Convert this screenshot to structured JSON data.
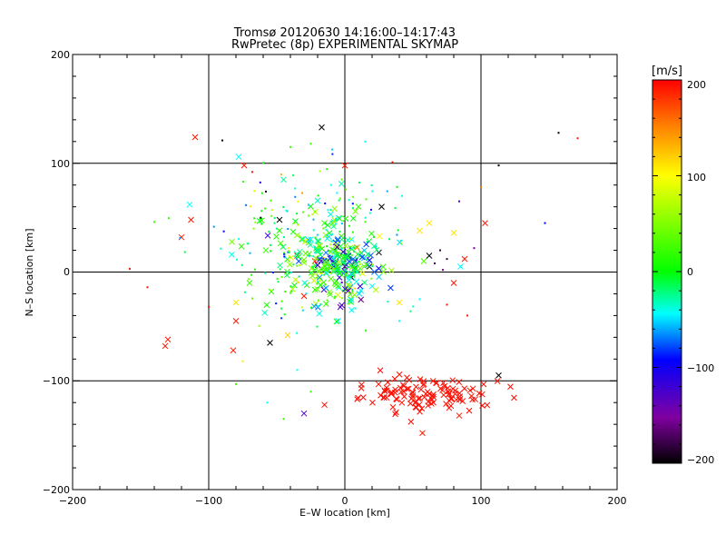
{
  "chart_data": {
    "type": "scatter",
    "title": "Tromsø 20120630 14:16:00–14:17:43",
    "subtitle": "RwPretec (8p) EXPERIMENTAL SKYMAP",
    "xlabel": "E–W location [km]",
    "ylabel": "N–S location [km]",
    "xlim": [
      -200,
      200
    ],
    "ylim": [
      -200,
      200
    ],
    "xticks": [
      "−200",
      "−100",
      "0",
      "100",
      "200"
    ],
    "yticks": [
      "−200",
      "−100",
      "0",
      "100",
      "200"
    ],
    "gridlines": [
      -100,
      0,
      100
    ],
    "grid": "at ±100 and 0",
    "colorbar": {
      "label": "[m/s]",
      "min": -200,
      "max": 200,
      "ticks": [
        "200",
        "100",
        "0",
        "−100",
        "−200"
      ],
      "colormap": "rainbow: black (−200) → purple → blue → cyan → green (0) → yellow → red (200)"
    },
    "markers": {
      "cross": "large x markers",
      "dot": "small dot markers"
    },
    "points": [
      {
        "x": -110,
        "y": 124,
        "v": 190,
        "m": "x"
      },
      {
        "x": -120,
        "y": 32,
        "v": 190,
        "m": "x"
      },
      {
        "x": -113,
        "y": 48,
        "v": 190,
        "m": "x"
      },
      {
        "x": -114,
        "y": 62,
        "v": -50,
        "m": "x"
      },
      {
        "x": -78,
        "y": 106,
        "v": -50,
        "m": "x"
      },
      {
        "x": -74,
        "y": 98,
        "v": 190,
        "m": "x"
      },
      {
        "x": -17,
        "y": 133,
        "v": -200,
        "m": "x"
      },
      {
        "x": 0,
        "y": 98,
        "v": 190,
        "m": "x"
      },
      {
        "x": -48,
        "y": 48,
        "v": -200,
        "m": "x"
      },
      {
        "x": -45,
        "y": 85,
        "v": -30,
        "m": "x"
      },
      {
        "x": -132,
        "y": -68,
        "v": 190,
        "m": "x"
      },
      {
        "x": -130,
        "y": -62,
        "v": 190,
        "m": "x"
      },
      {
        "x": -80,
        "y": -45,
        "v": 190,
        "m": "x"
      },
      {
        "x": -82,
        "y": -72,
        "v": 190,
        "m": "x"
      },
      {
        "x": -55,
        "y": -65,
        "v": -200,
        "m": "x"
      },
      {
        "x": -42,
        "y": -58,
        "v": 120,
        "m": "x"
      },
      {
        "x": -30,
        "y": -130,
        "v": -130,
        "m": "x"
      },
      {
        "x": -80,
        "y": -28,
        "v": 110,
        "m": "x"
      },
      {
        "x": 113,
        "y": -95,
        "v": -200,
        "m": "x"
      },
      {
        "x": 103,
        "y": 45,
        "v": 190,
        "m": "x"
      },
      {
        "x": 80,
        "y": 36,
        "v": 110,
        "m": "x"
      },
      {
        "x": 62,
        "y": 45,
        "v": 110,
        "m": "x"
      },
      {
        "x": 55,
        "y": 38,
        "v": 110,
        "m": "x"
      },
      {
        "x": 88,
        "y": 12,
        "v": 190,
        "m": "x"
      },
      {
        "x": 85,
        "y": 5,
        "v": -50,
        "m": "x"
      },
      {
        "x": 80,
        "y": -10,
        "v": 190,
        "m": "x"
      },
      {
        "x": 58,
        "y": 10,
        "v": 30,
        "m": "x"
      },
      {
        "x": 62,
        "y": 15,
        "v": -200,
        "m": "x"
      },
      {
        "x": 40,
        "y": -28,
        "v": 110,
        "m": "x"
      },
      {
        "x": 27,
        "y": 60,
        "v": -200,
        "m": "x"
      },
      {
        "x": 25,
        "y": 18,
        "v": -200,
        "m": "x"
      },
      {
        "x": 18,
        "y": 5,
        "v": -200,
        "m": "x"
      },
      {
        "x": 5,
        "y": -5,
        "v": -200,
        "m": "x"
      },
      {
        "x": -35,
        "y": 15,
        "v": 190,
        "m": "x"
      },
      {
        "x": -30,
        "y": -22,
        "v": 190,
        "m": "x"
      },
      {
        "x": -22,
        "y": 10,
        "v": 190,
        "m": "x"
      },
      {
        "x": 50,
        "y": -115,
        "v": 190,
        "m": "x"
      },
      {
        "x": 57,
        "y": -148,
        "v": 190,
        "m": "x"
      },
      {
        "x": 84,
        "y": -132,
        "v": 190,
        "m": "x"
      },
      {
        "x": -28,
        "y": -12,
        "v": 20,
        "m": "x"
      },
      {
        "x": -15,
        "y": 45,
        "v": 20,
        "m": "x"
      },
      {
        "x": -25,
        "y": 30,
        "v": -50,
        "m": "x"
      },
      {
        "x": -8,
        "y": 20,
        "v": -50,
        "m": "x"
      },
      {
        "x": 5,
        "y": 30,
        "v": -50,
        "m": "x"
      },
      {
        "x": -5,
        "y": -45,
        "v": -50,
        "m": "x"
      },
      {
        "x": 5,
        "y": -35,
        "v": -50,
        "m": "x"
      },
      {
        "x": -58,
        "y": 20,
        "v": 20,
        "m": "x"
      },
      {
        "x": -70,
        "y": -10,
        "v": 20,
        "m": "x"
      },
      {
        "x": 10,
        "y": 60,
        "v": 20,
        "m": "x"
      },
      {
        "x": -158,
        "y": 3,
        "v": 190,
        "m": "d"
      },
      {
        "x": -145,
        "y": -14,
        "v": 190,
        "m": "d"
      },
      {
        "x": -140,
        "y": 46,
        "v": 20,
        "m": "d"
      },
      {
        "x": -90,
        "y": 121,
        "v": -200,
        "m": "d"
      },
      {
        "x": -68,
        "y": 92,
        "v": 190,
        "m": "d"
      },
      {
        "x": -58,
        "y": 74,
        "v": -200,
        "m": "d"
      },
      {
        "x": -40,
        "y": 115,
        "v": 20,
        "m": "d"
      },
      {
        "x": -25,
        "y": 118,
        "v": 20,
        "m": "d"
      },
      {
        "x": 35,
        "y": 101,
        "v": 190,
        "m": "d"
      },
      {
        "x": 157,
        "y": 128,
        "v": -200,
        "m": "d"
      },
      {
        "x": 171,
        "y": 123,
        "v": 190,
        "m": "d"
      },
      {
        "x": 113,
        "y": 98,
        "v": -200,
        "m": "d"
      },
      {
        "x": 147,
        "y": 45,
        "v": -100,
        "m": "d"
      },
      {
        "x": 84,
        "y": 65,
        "v": -130,
        "m": "d"
      },
      {
        "x": 100,
        "y": 78,
        "v": 150,
        "m": "d"
      },
      {
        "x": 95,
        "y": 22,
        "v": -150,
        "m": "d"
      },
      {
        "x": 70,
        "y": 20,
        "v": -180,
        "m": "d"
      },
      {
        "x": 75,
        "y": 12,
        "v": -180,
        "m": "d"
      },
      {
        "x": 66,
        "y": 8,
        "v": -180,
        "m": "d"
      },
      {
        "x": 72,
        "y": 2,
        "v": -150,
        "m": "d"
      },
      {
        "x": 90,
        "y": -40,
        "v": 190,
        "m": "d"
      },
      {
        "x": 75,
        "y": -30,
        "v": 190,
        "m": "d"
      },
      {
        "x": -100,
        "y": -32,
        "v": 190,
        "m": "d"
      },
      {
        "x": -75,
        "y": -82,
        "v": 110,
        "m": "d"
      },
      {
        "x": -80,
        "y": -103,
        "v": 20,
        "m": "d"
      },
      {
        "x": -57,
        "y": -120,
        "v": -50,
        "m": "d"
      },
      {
        "x": -45,
        "y": -135,
        "v": 20,
        "m": "d"
      },
      {
        "x": -25,
        "y": -110,
        "v": 20,
        "m": "d"
      },
      {
        "x": -35,
        "y": -90,
        "v": -50,
        "m": "d"
      },
      {
        "x": 40,
        "y": -45,
        "v": -50,
        "m": "d"
      },
      {
        "x": 55,
        "y": -25,
        "v": -50,
        "m": "d"
      },
      {
        "x": 42,
        "y": 70,
        "v": -50,
        "m": "d"
      },
      {
        "x": 15,
        "y": 120,
        "v": -50,
        "m": "d"
      }
    ],
    "clusters": [
      {
        "cx": -15,
        "cy": 15,
        "sx": 22,
        "sy": 24,
        "n": 140,
        "v": 10,
        "vs": 50,
        "m": "x"
      },
      {
        "cx": -25,
        "cy": 25,
        "sx": 30,
        "sy": 35,
        "n": 230,
        "v": -10,
        "vs": 55,
        "m": "d"
      },
      {
        "cx": 0,
        "cy": 5,
        "sx": 12,
        "sy": 15,
        "n": 110,
        "v": -40,
        "vs": 60,
        "m": "x"
      },
      {
        "cx": 60,
        "cy": -112,
        "sx": 28,
        "sy": 9,
        "n": 120,
        "v": 195,
        "vs": 0,
        "m": "x"
      }
    ]
  }
}
